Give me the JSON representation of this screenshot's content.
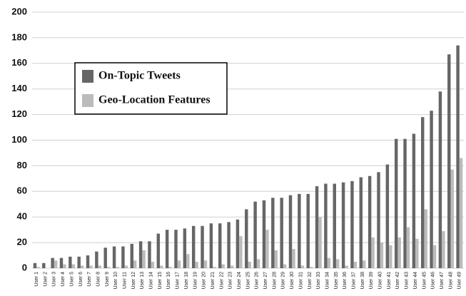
{
  "chart_data": {
    "type": "bar",
    "categories": [
      "User 1",
      "User 2",
      "User 3",
      "User 4",
      "User 5",
      "User 6",
      "User 7",
      "User 8",
      "User 9",
      "User 10",
      "User 11",
      "User 12",
      "User 13",
      "User 14",
      "User 15",
      "User 16",
      "User 17",
      "User 18",
      "User 19",
      "User 20",
      "User 21",
      "User 22",
      "User 23",
      "User 24",
      "User 25",
      "User 26",
      "User 27",
      "User 28",
      "User 29",
      "User 30",
      "User 31",
      "User 32",
      "User 33",
      "User 34",
      "User 35",
      "User 36",
      "User 37",
      "User 38",
      "User 39",
      "User 40",
      "User 41",
      "User 42",
      "User 43",
      "User 44",
      "User 45",
      "User 46",
      "User 47",
      "User 48",
      "User 49"
    ],
    "series": [
      {
        "name": "On-Topic Tweets",
        "color": "#666666",
        "values": [
          4,
          4,
          8,
          8,
          9,
          9,
          10,
          13,
          16,
          17,
          17,
          19,
          21,
          21,
          27,
          30,
          30,
          31,
          33,
          33,
          35,
          35,
          36,
          38,
          46,
          52,
          53,
          55,
          55,
          57,
          58,
          58,
          64,
          66,
          66,
          67,
          68,
          71,
          72,
          75,
          81,
          101,
          101,
          105,
          118,
          123,
          138,
          167,
          174
        ]
      },
      {
        "name": "Geo-Location Features",
        "color": "#bbbbbb",
        "values": [
          1,
          0,
          6,
          3,
          3,
          2,
          2,
          2,
          1,
          1,
          2,
          6,
          14,
          5,
          2,
          1,
          6,
          11,
          5,
          6,
          1,
          3,
          2,
          25,
          5,
          7,
          30,
          14,
          3,
          15,
          2,
          1,
          40,
          8,
          7,
          2,
          5,
          6,
          24,
          20,
          18,
          24,
          32,
          23,
          46,
          18,
          29,
          77,
          86
        ]
      }
    ],
    "ylim": [
      0,
      200
    ],
    "yticks": [
      0,
      20,
      40,
      60,
      80,
      100,
      120,
      140,
      160,
      180,
      200
    ],
    "grid": true
  }
}
